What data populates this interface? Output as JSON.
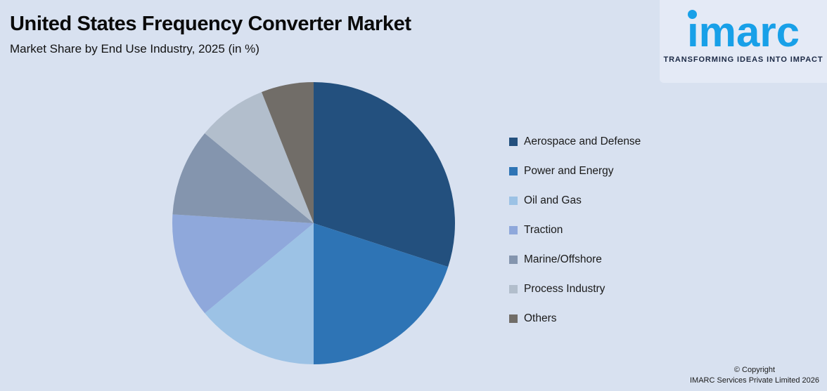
{
  "page": {
    "background": "#D8E1F0"
  },
  "header": {
    "title": "United States Frequency Converter Market",
    "subtitle": "Market Share by End Use Industry, 2025 (in %)"
  },
  "logo": {
    "wordmark": "imarc",
    "tagline": "TRANSFORMING IDEAS INTO IMPACT",
    "brand_color": "#18A0E8",
    "tagline_color": "#1B2945"
  },
  "chart_data": {
    "type": "pie",
    "title": "United States Frequency Converter Market",
    "subtitle": "Market Share by End Use Industry, 2025 (in %)",
    "start_angle_deg": 0,
    "direction": "clockwise",
    "legend_position": "right",
    "slices": [
      {
        "label": "Aerospace and Defense",
        "value": 30,
        "color": "#23507E"
      },
      {
        "label": "Power and Energy",
        "value": 20,
        "color": "#2E74B5"
      },
      {
        "label": "Oil and Gas",
        "value": 14,
        "color": "#9CC2E5"
      },
      {
        "label": "Traction",
        "value": 12,
        "color": "#8FA8DB"
      },
      {
        "label": "Marine/Offshore",
        "value": 10,
        "color": "#8495AE"
      },
      {
        "label": "Process Industry",
        "value": 8,
        "color": "#B2BECC"
      },
      {
        "label": "Others",
        "value": 6,
        "color": "#716D68"
      }
    ]
  },
  "footer": {
    "copyright_line1": "© Copyright",
    "copyright_line2": "IMARC Services Private Limited 2026"
  }
}
